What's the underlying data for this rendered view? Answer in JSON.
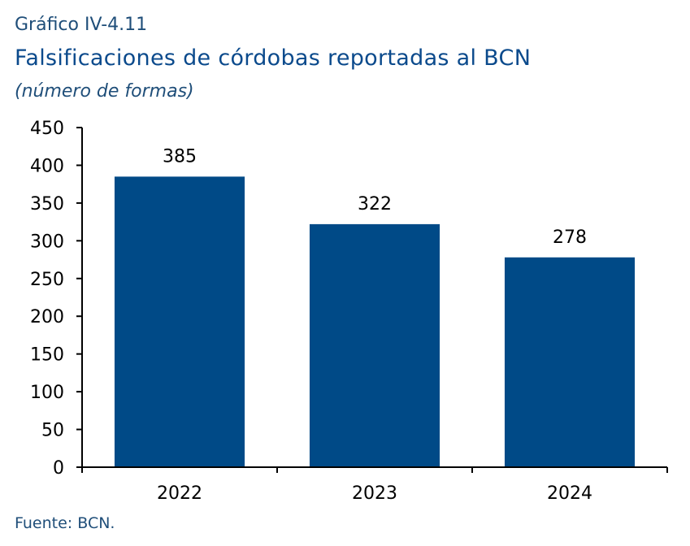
{
  "header": {
    "graph_number": "Gráfico IV-4.11",
    "title": "Falsificaciones de córdobas reportadas al BCN",
    "subtitle": "(número de formas)"
  },
  "footer": {
    "source": "Fuente: BCN."
  },
  "colors": {
    "bar": "#004a87",
    "axis": "#000000",
    "title": "#0b4a8c"
  },
  "chart_data": {
    "type": "bar",
    "categories": [
      "2022",
      "2023",
      "2024"
    ],
    "values": [
      385,
      322,
      278
    ],
    "data_labels": [
      "385",
      "322",
      "278"
    ],
    "title": "Falsificaciones de córdobas reportadas al BCN",
    "subtitle": "(número de formas)",
    "xlabel": "",
    "ylabel": "",
    "ylim": [
      0,
      450
    ],
    "yticks": [
      0,
      50,
      100,
      150,
      200,
      250,
      300,
      350,
      400,
      450
    ],
    "grid": false,
    "legend": "none"
  }
}
